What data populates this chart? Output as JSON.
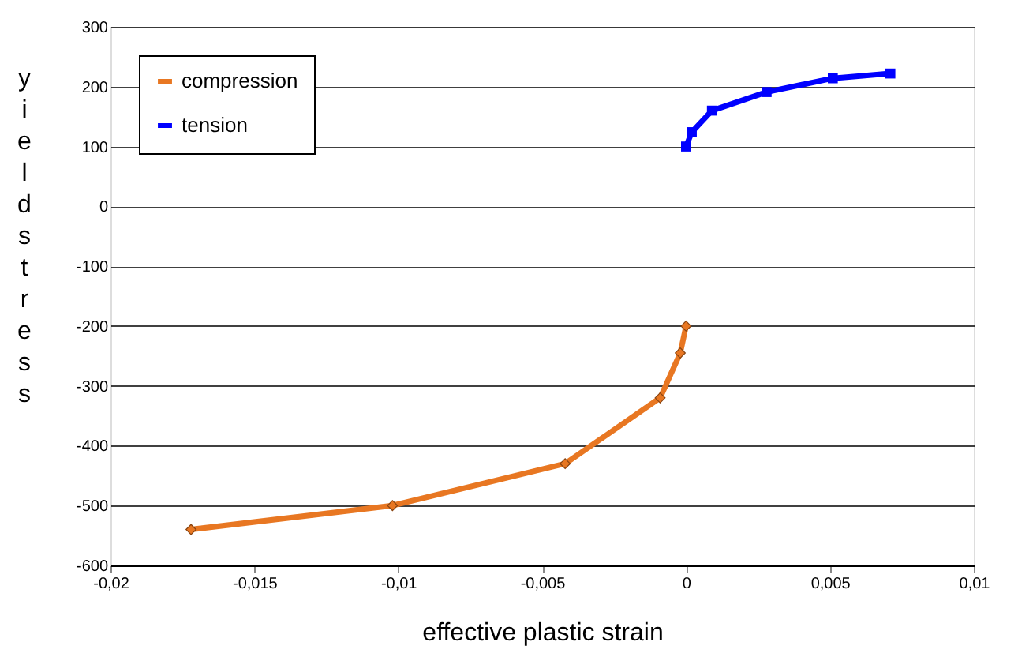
{
  "chart_data": {
    "type": "line",
    "xlabel": "effective plastic strain",
    "ylabel": "yield stress",
    "xlim": [
      -0.02,
      0.01
    ],
    "ylim": [
      -600,
      300
    ],
    "xticks": [
      {
        "value": -0.02,
        "label": "-0,02"
      },
      {
        "value": -0.015,
        "label": "-0,015"
      },
      {
        "value": -0.01,
        "label": "-0,01"
      },
      {
        "value": -0.005,
        "label": "-0,005"
      },
      0,
      {
        "value": 0.005,
        "label": "0,005"
      },
      {
        "value": 0.01,
        "label": "0,01"
      }
    ],
    "yticks": [
      -600,
      -500,
      -400,
      -300,
      -200,
      -100,
      0,
      100,
      200,
      300
    ],
    "grid": "y",
    "legend": "top left",
    "line_style": "solid",
    "series": [
      {
        "name": "compression",
        "color": "#e87722",
        "marker": "diamond",
        "x": [
          -0.0172,
          -0.0102,
          -0.0042,
          -0.0009,
          -0.0002,
          0
        ],
        "values": [
          -540,
          -500,
          -430,
          -320,
          -245,
          -200
        ]
      },
      {
        "name": "tension",
        "color": "#0000ff",
        "marker": "square",
        "x": [
          0,
          0.0002,
          0.0009,
          0.0028,
          0.0051,
          0.0071
        ],
        "values": [
          100,
          124,
          160,
          191,
          214,
          222
        ]
      }
    ]
  }
}
